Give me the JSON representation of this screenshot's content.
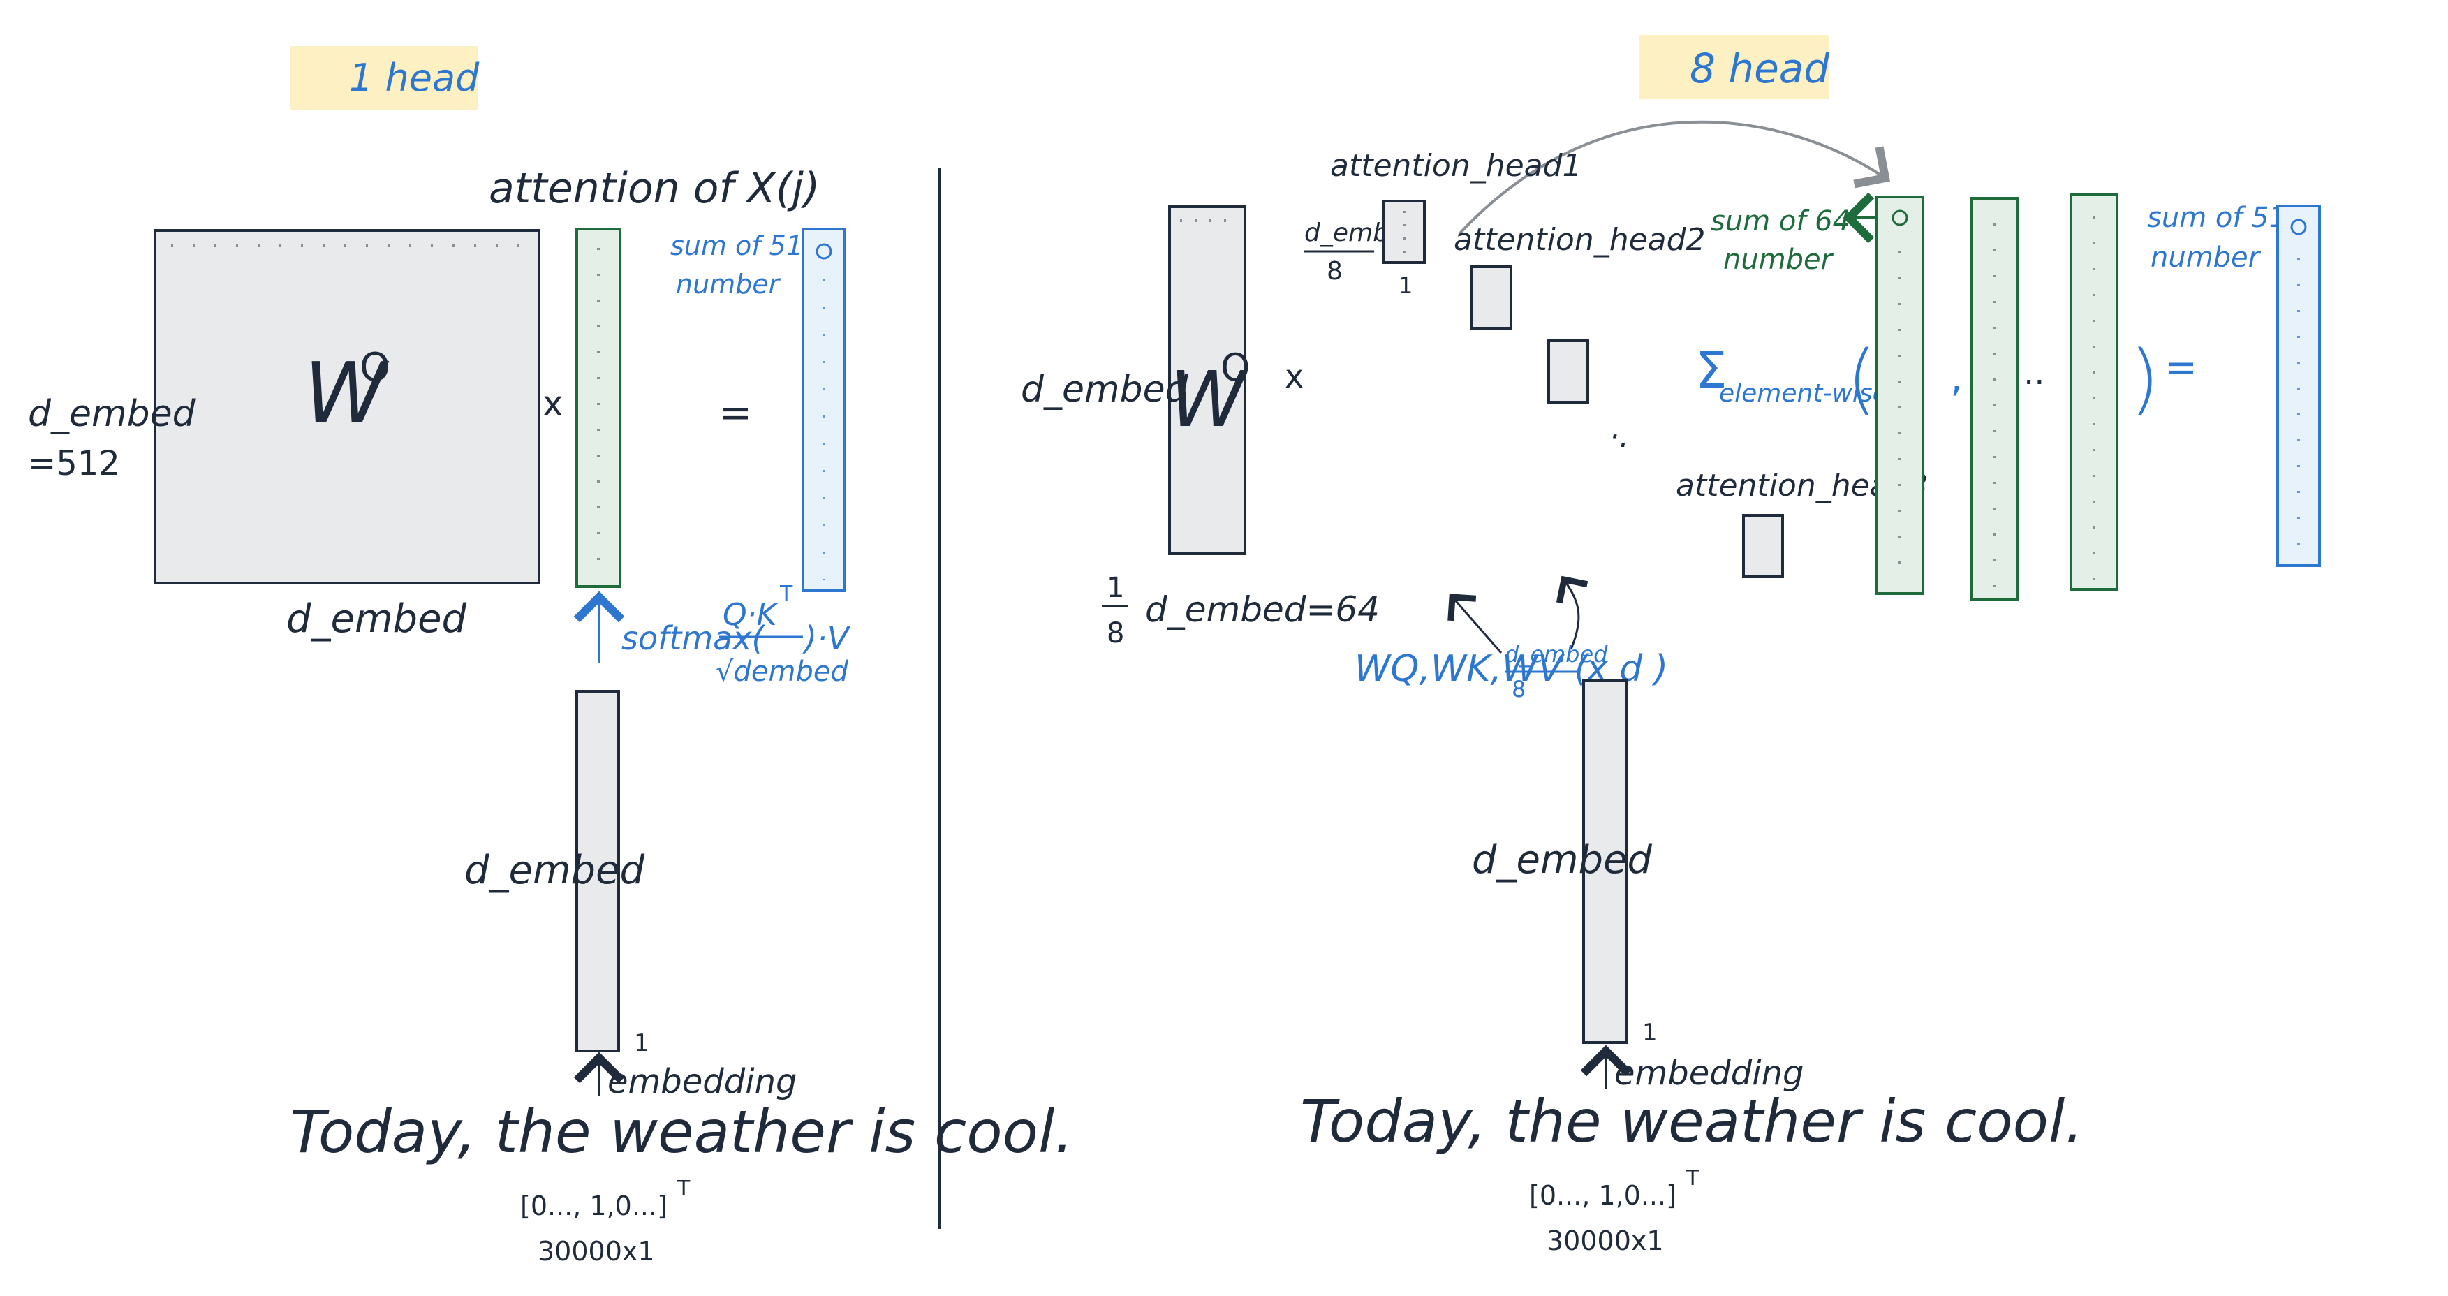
{
  "colors": {
    "ink": "#1f2a3a",
    "blue": "#2e77d0",
    "green": "#1e6b3c",
    "highlight": "#fdf0c2",
    "gray_box": "#e9eaec",
    "green_box": "#e4efe8",
    "blue_box": "#e8f2fb"
  },
  "left": {
    "heading": "1 head",
    "attention_label": "attention of X(j)",
    "wo_label": "W",
    "wo_superscript": "O",
    "d_embed_left": "d_embed",
    "d_embed_value": "=512",
    "d_embed_bottom": "d_embed",
    "times": "x",
    "equals": "=",
    "sum_label_1": "sum of 512",
    "sum_label_2": "number",
    "softmax_pre": "softmax(",
    "softmax_num": "Q·K",
    "softmax_T": "T",
    "softmax_den": "√dembed",
    "softmax_post": ")·V",
    "d_embed_vec": "d_embed",
    "one_mark": "1",
    "embedding_label": "embedding",
    "sentence": "Today, the weather is cool.",
    "onehot": "[0..., 1,0...]",
    "onehot_T": "T",
    "onehot_size": "30000x1"
  },
  "right": {
    "heading": "8 head",
    "d_embed_left": "d_embed",
    "wo_label": "W",
    "wo_superscript": "O",
    "times": "x",
    "bottom_label": "d_embed=64",
    "frac_num": "1",
    "frac_den": "8",
    "head1_label": "attention_head1",
    "head2_label": "attention_head2",
    "head8_label": "attention_head8",
    "d8_num": "d_embed",
    "d8_den": "8",
    "one_mark": "1",
    "dots": "·.",
    "sum64_1": "sum of 64",
    "sum64_2": "number",
    "sum512_1": "sum of 512",
    "sum512_2": "number",
    "sigma": "Σ",
    "sigma_sub": "element-wise",
    "lparen": "(",
    "comma": ",",
    "ellipsis": "..",
    "rparen": ")",
    "equals": "=",
    "wqkv": "WQ,WK,WV (",
    "wqkv_frac_num": "d_embed",
    "wqkv_frac_den": "8",
    "wqkv_post": "x d )",
    "d_embed_vec": "d_embed",
    "embedding_label": "embedding",
    "sentence": "Today, the weather is cool.",
    "onehot": "[0..., 1,0...]",
    "onehot_T": "T",
    "onehot_size": "30000x1"
  }
}
